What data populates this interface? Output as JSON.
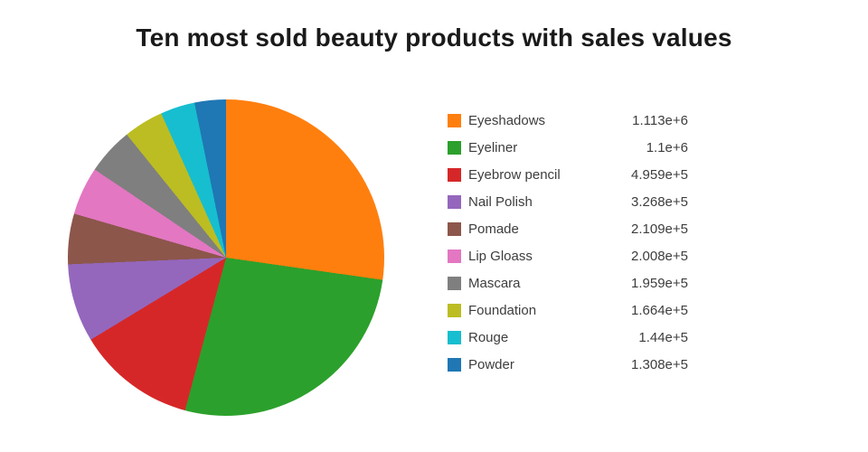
{
  "chart_data": {
    "type": "pie",
    "title": "Ten most sold beauty products with sales values",
    "labels": [
      "Eyeshadows",
      "Eyeliner",
      "Eyebrow pencil",
      "Nail Polish",
      "Pomade",
      "Lip Gloass",
      "Mascara",
      "Foundation",
      "Rouge",
      "Powder"
    ],
    "values": [
      1113000,
      1100000,
      495900,
      326800,
      210900,
      200800,
      195900,
      166400,
      144000,
      130800
    ],
    "value_labels": [
      "1.113e+6",
      "1.1e+6",
      "4.959e+5",
      "3.268e+5",
      "2.109e+5",
      "2.008e+5",
      "1.959e+5",
      "1.664e+5",
      "1.44e+5",
      "1.308e+5"
    ],
    "colors": [
      "#ff7f0e",
      "#2ca02c",
      "#d62728",
      "#9467bd",
      "#8c564b",
      "#e377c2",
      "#7f7f7f",
      "#bcbd22",
      "#17becf",
      "#1f77b4"
    ],
    "legend_position": "right",
    "start_angle_deg": 0,
    "direction": "clockwise",
    "grid": false
  }
}
